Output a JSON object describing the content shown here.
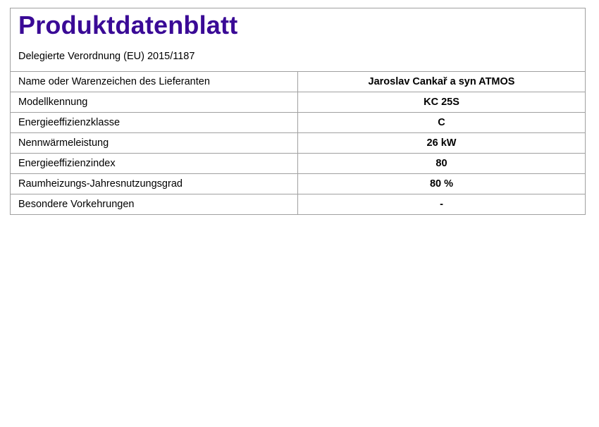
{
  "header": {
    "title": "Produktdatenblatt",
    "subtitle": "Delegierte Verordnung (EU) 2015/1187",
    "title_color": "#3a0a96"
  },
  "rows": [
    {
      "label": "Name oder Warenzeichen des Lieferanten",
      "value": "Jaroslav Cankař a syn ATMOS"
    },
    {
      "label": "Modellkennung",
      "value": "KC 25S"
    },
    {
      "label": "Energieeffizienzklasse",
      "value": "C"
    },
    {
      "label": "Nennwärmeleistung",
      "value": "26 kW"
    },
    {
      "label": "Energieeffizienzindex",
      "value": "80"
    },
    {
      "label": "Raumheizungs-Jahresnutzungsgrad",
      "value": "80 %"
    },
    {
      "label": "Besondere Vorkehrungen",
      "value": "-"
    }
  ]
}
